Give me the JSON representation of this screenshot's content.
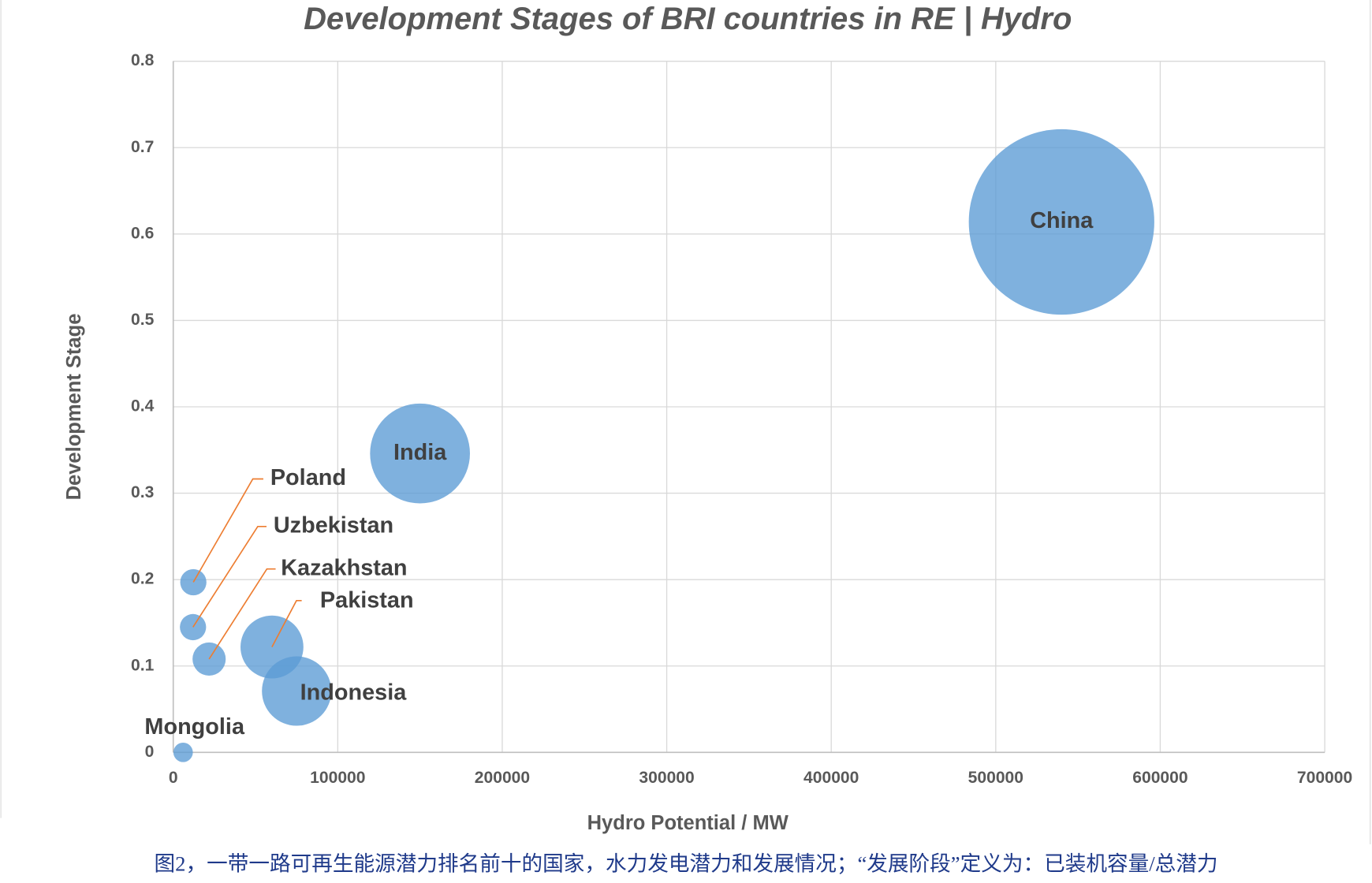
{
  "chart_data": {
    "type": "bubble",
    "title": "Development Stages of BRI countries in RE | Hydro",
    "x_label": "Hydro Potential / MW",
    "y_label": "Development Stage",
    "caption": "图2，一带一路可再生能源潜力排名前十的国家，水力发电潜力和发展情况；“发展阶段”定义为：已装机容量/总潜力",
    "xlim": [
      0,
      700000
    ],
    "xticks": [
      0,
      100000,
      200000,
      300000,
      400000,
      500000,
      600000,
      700000
    ],
    "ylim": [
      0,
      0.8
    ],
    "yticks": [
      0,
      0.1,
      0.2,
      0.3,
      0.4,
      0.5,
      0.6,
      0.7,
      0.8
    ],
    "grid": true,
    "series": [
      {
        "color": "#5b9bd5",
        "labels": [
          "China",
          "India",
          "Poland",
          "Uzbekistan",
          "Kazakhstan",
          "Pakistan",
          "Indonesia",
          "Mongolia"
        ],
        "x": [
          540000,
          150000,
          12200,
          12000,
          21800,
          60000,
          75000,
          6000
        ],
        "values": [
          0.614,
          0.346,
          0.197,
          0.145,
          0.108,
          0.122,
          0.071,
          0
        ],
        "sizes": [
          100,
          29,
          2,
          2,
          3.2,
          11.5,
          14,
          1.1
        ]
      }
    ]
  }
}
